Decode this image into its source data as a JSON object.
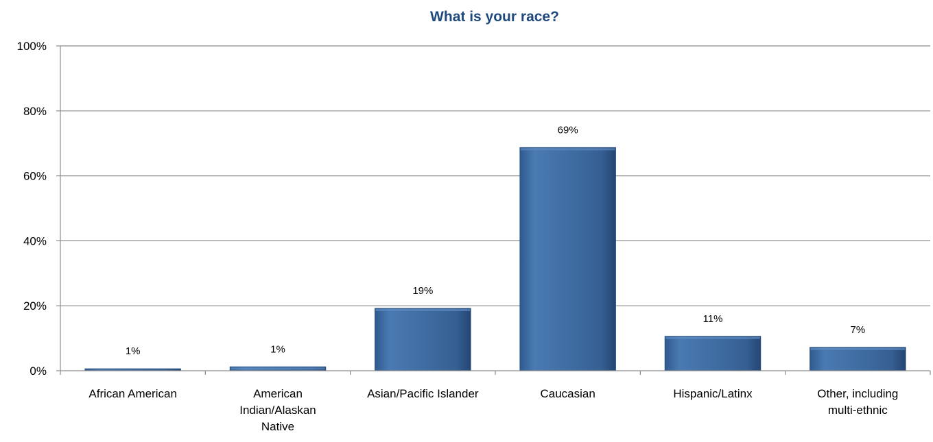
{
  "chart_data": {
    "type": "bar",
    "title": "What is your race?",
    "categories": [
      [
        "African American"
      ],
      [
        "American",
        "Indian/Alaskan",
        "Native"
      ],
      [
        "Asian/Pacific Islander"
      ],
      [
        "Caucasian"
      ],
      [
        "Hispanic/Latinx"
      ],
      [
        "Other, including",
        "multi-ethnic"
      ]
    ],
    "values": [
      0.6,
      1.2,
      19.2,
      68.7,
      10.6,
      7.2
    ],
    "data_labels": [
      "1%",
      "1%",
      "19%",
      "69%",
      "11%",
      "7%"
    ],
    "ylim": [
      0,
      100
    ],
    "yticks": [
      0,
      20,
      40,
      60,
      80,
      100
    ],
    "ytick_labels": [
      "0%",
      "20%",
      "40%",
      "60%",
      "80%",
      "100%"
    ],
    "grid": true,
    "legend": "none",
    "colors": {
      "bar": "#3f6ea3",
      "bar_dark": "#2a4f7e",
      "grid": "#8c8c8c",
      "title": "#1f497d"
    }
  }
}
